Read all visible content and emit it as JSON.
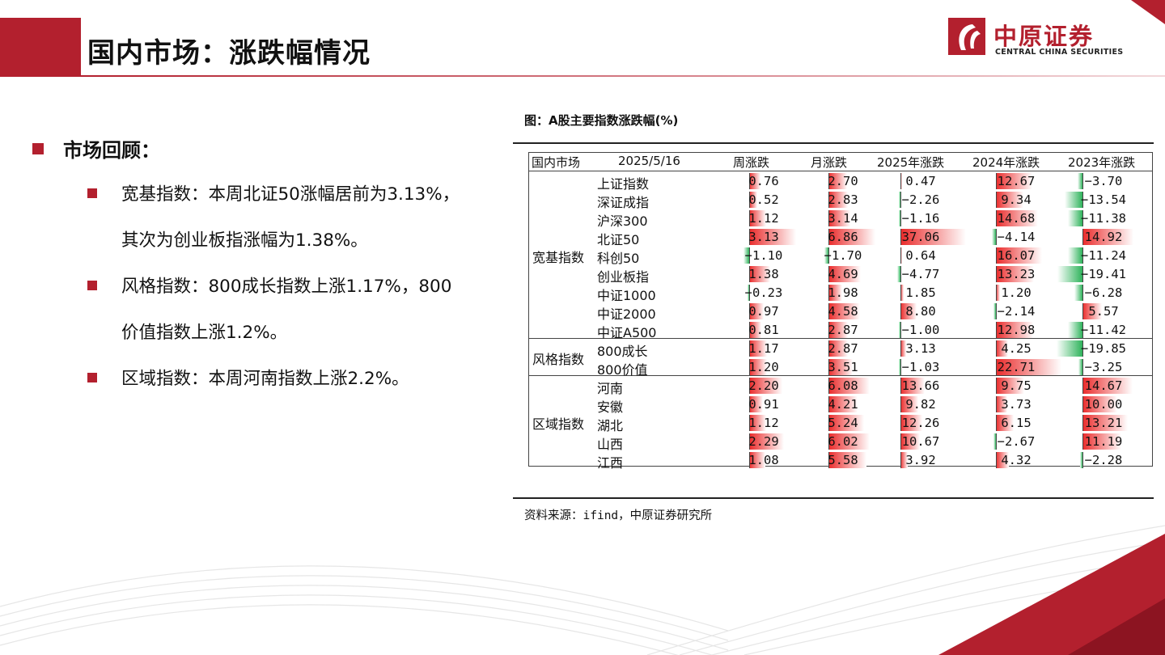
{
  "header": {
    "title": "国内市场：涨跌幅情况"
  },
  "logo": {
    "cn": "中原证券",
    "en": "CENTRAL CHINA SECURITIES"
  },
  "left": {
    "heading": "市场回顾：",
    "bullets": [
      {
        "line1": "宽基指数：本周北证50涨幅居前为3.13%，",
        "line2": "其次为创业板指涨幅为1.38%。"
      },
      {
        "line1": "风格指数：800成长指数上涨1.17%，800",
        "line2": "价值指数上涨1.2%。"
      },
      {
        "line1": "区域指数：本周河南指数上涨2.2%。",
        "line2": ""
      }
    ]
  },
  "figure": {
    "caption": "图：A股主要指数涨跌幅(%)",
    "source": "资料来源：ifind，中原证券研究所"
  },
  "chart_data": {
    "type": "table",
    "corner_label": "国内市场",
    "date": "2025/5/16",
    "columns": [
      "周涨跌",
      "月涨跌",
      "2025年涨跌",
      "2024年涨跌",
      "2023年涨跌"
    ],
    "groups": [
      {
        "name": "宽基指数",
        "rows": [
          {
            "name": "上证指数",
            "values": [
              0.76,
              2.7,
              0.47,
              12.67,
              -3.7
            ]
          },
          {
            "name": "深证成指",
            "values": [
              0.52,
              2.83,
              -2.26,
              9.34,
              -13.54
            ]
          },
          {
            "name": "沪深300",
            "values": [
              1.12,
              3.14,
              -1.16,
              14.68,
              -11.38
            ]
          },
          {
            "name": "北证50",
            "values": [
              3.13,
              6.86,
              37.06,
              -4.14,
              14.92
            ]
          },
          {
            "name": "科创50",
            "values": [
              -1.1,
              -1.7,
              0.64,
              16.07,
              -11.24
            ]
          },
          {
            "name": "创业板指",
            "values": [
              1.38,
              4.69,
              -4.77,
              13.23,
              -19.41
            ]
          },
          {
            "name": "中证1000",
            "values": [
              -0.23,
              1.98,
              1.85,
              1.2,
              -6.28
            ]
          },
          {
            "name": "中证2000",
            "values": [
              0.97,
              4.58,
              8.8,
              -2.14,
              5.57
            ]
          },
          {
            "name": "中证A500",
            "values": [
              0.81,
              2.87,
              -1.0,
              12.98,
              -11.42
            ]
          }
        ]
      },
      {
        "name": "风格指数",
        "rows": [
          {
            "name": "800成长",
            "values": [
              1.17,
              2.87,
              3.13,
              4.25,
              -19.85
            ]
          },
          {
            "name": "800价值",
            "values": [
              1.2,
              3.51,
              -1.03,
              22.71,
              -3.25
            ]
          }
        ]
      },
      {
        "name": "区域指数",
        "rows": [
          {
            "name": "河南",
            "values": [
              2.2,
              6.08,
              13.66,
              9.75,
              14.67
            ]
          },
          {
            "name": "安徽",
            "values": [
              0.91,
              4.21,
              9.82,
              3.73,
              10.0
            ]
          },
          {
            "name": "湖北",
            "values": [
              1.12,
              5.24,
              12.26,
              6.15,
              13.21
            ]
          },
          {
            "name": "山西",
            "values": [
              2.29,
              6.02,
              10.67,
              -2.67,
              11.19
            ]
          },
          {
            "name": "江西",
            "values": [
              1.08,
              5.58,
              3.92,
              4.32,
              -2.28
            ]
          }
        ]
      }
    ],
    "colors": {
      "positive": "#ea2a2a",
      "negative": "#2eb35b"
    }
  }
}
